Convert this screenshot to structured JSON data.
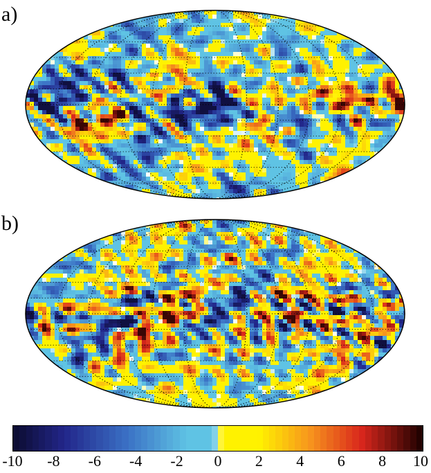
{
  "panels": [
    {
      "label": "a)"
    },
    {
      "label": "b)"
    }
  ],
  "colorbar": {
    "min": -10,
    "max": 10,
    "ticks": [
      "-10",
      "-8",
      "-6",
      "-4",
      "-2",
      "0",
      "2",
      "4",
      "6",
      "8",
      "10"
    ],
    "colors": {
      "neg_extreme": "#0b0b2e",
      "neg_strong": "#22268a",
      "neg_mid": "#3a6fc4",
      "neg_weak": "#5fc3e4",
      "zero": "#ffffff",
      "pos_weak": "#fff200",
      "pos_mid": "#f7941d",
      "pos_strong": "#d9261c",
      "pos_extreme": "#1a0000"
    }
  }
}
